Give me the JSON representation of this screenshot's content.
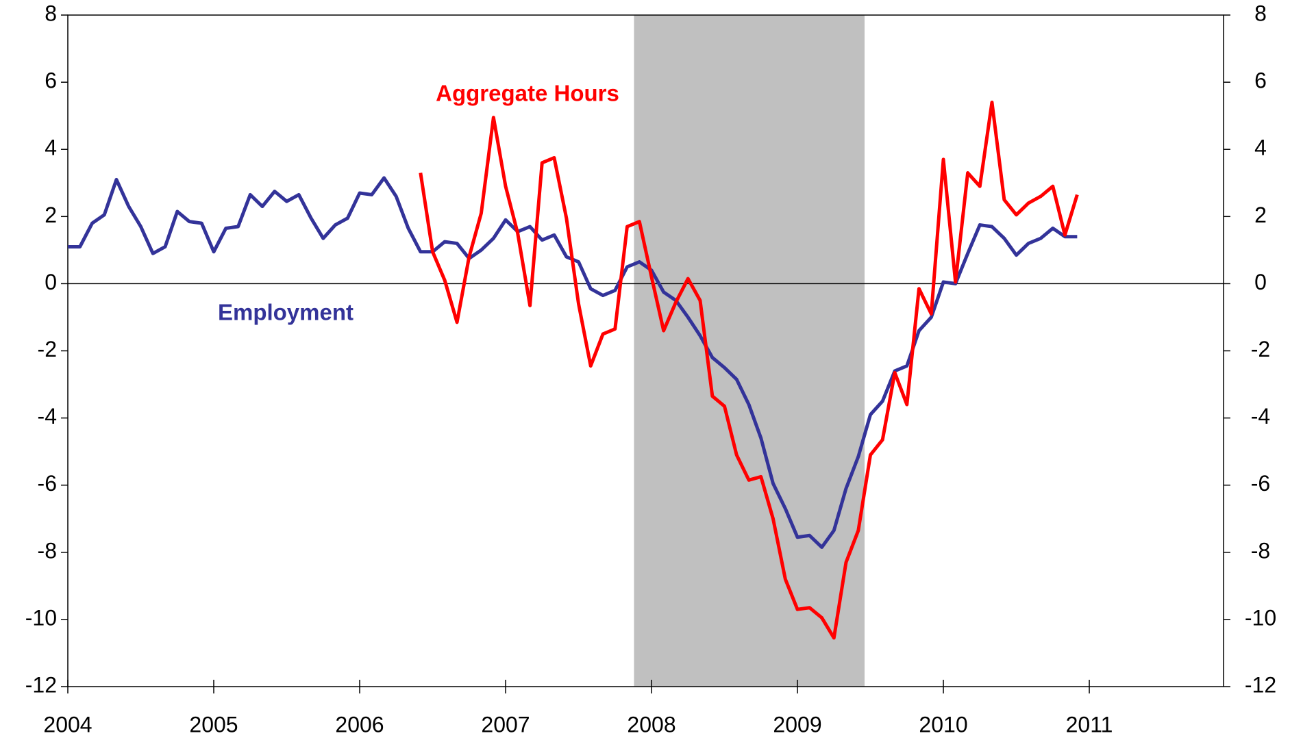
{
  "chart_data": {
    "type": "line",
    "x": [
      2004,
      2004.083,
      2004.167,
      2004.25,
      2004.333,
      2004.417,
      2004.5,
      2004.583,
      2004.667,
      2004.75,
      2004.833,
      2004.917,
      2005,
      2005.083,
      2005.167,
      2005.25,
      2005.333,
      2005.417,
      2005.5,
      2005.583,
      2005.667,
      2005.75,
      2005.833,
      2005.917,
      2006,
      2006.083,
      2006.167,
      2006.25,
      2006.333,
      2006.417,
      2006.5,
      2006.583,
      2006.667,
      2006.75,
      2006.833,
      2006.917,
      2007,
      2007.083,
      2007.167,
      2007.25,
      2007.333,
      2007.417,
      2007.5,
      2007.583,
      2007.667,
      2007.75,
      2007.833,
      2007.917,
      2008,
      2008.083,
      2008.167,
      2008.25,
      2008.333,
      2008.417,
      2008.5,
      2008.583,
      2008.667,
      2008.75,
      2008.833,
      2008.917,
      2009,
      2009.083,
      2009.167,
      2009.25,
      2009.333,
      2009.417,
      2009.5,
      2009.583,
      2009.667,
      2009.75,
      2009.833,
      2009.917,
      2010,
      2010.083,
      2010.167,
      2010.25,
      2010.333,
      2010.417,
      2010.5,
      2010.583,
      2010.667,
      2010.75,
      2010.833,
      2010.917
    ],
    "series": [
      {
        "name": "Employment",
        "color": "#333399",
        "values": [
          1.1,
          1.1,
          1.8,
          2.05,
          3.1,
          2.3,
          1.7,
          0.9,
          1.1,
          2.15,
          1.85,
          1.8,
          0.95,
          1.65,
          1.7,
          2.65,
          2.3,
          2.75,
          2.45,
          2.65,
          1.95,
          1.35,
          1.75,
          1.95,
          2.7,
          2.65,
          3.15,
          2.6,
          1.65,
          0.95,
          0.95,
          1.25,
          1.2,
          0.75,
          1.0,
          1.35,
          1.9,
          1.55,
          1.7,
          1.3,
          1.45,
          0.8,
          0.65,
          -0.15,
          -0.35,
          -0.2,
          0.5,
          0.65,
          0.4,
          -0.25,
          -0.5,
          -1.0,
          -1.55,
          -2.2,
          -2.5,
          -2.85,
          -3.6,
          -4.6,
          -5.95,
          -6.7,
          -7.55,
          -7.5,
          -7.85,
          -7.35,
          -6.1,
          -5.15,
          -3.9,
          -3.5,
          -2.6,
          -2.45,
          -1.4,
          -1.0,
          0.05,
          0.0,
          0.9,
          1.75,
          1.7,
          1.35,
          0.85,
          1.2,
          1.35,
          1.65,
          1.4,
          1.4
        ]
      },
      {
        "name": "Aggregate Hours",
        "color": "#ff0000",
        "values": [
          null,
          null,
          null,
          null,
          null,
          null,
          null,
          null,
          null,
          null,
          null,
          null,
          null,
          null,
          null,
          null,
          null,
          null,
          null,
          null,
          null,
          null,
          null,
          null,
          null,
          null,
          null,
          null,
          null,
          3.3,
          0.95,
          0.1,
          -1.15,
          0.8,
          2.1,
          4.95,
          2.9,
          1.5,
          -0.65,
          3.6,
          3.75,
          1.95,
          -0.6,
          -2.45,
          -1.5,
          -1.35,
          1.7,
          1.85,
          0.2,
          -1.4,
          -0.55,
          0.15,
          -0.5,
          -3.35,
          -3.65,
          -5.1,
          -5.85,
          -5.75,
          -7.0,
          -8.8,
          -9.7,
          -9.65,
          -9.95,
          -10.55,
          -8.3,
          -7.35,
          -5.1,
          -4.65,
          -2.65,
          -3.6,
          -0.15,
          -0.9,
          3.7,
          0.05,
          3.3,
          2.9,
          5.4,
          2.5,
          2.05,
          2.4,
          2.6,
          2.9,
          1.45,
          2.65
        ]
      }
    ],
    "annotations": [
      {
        "text": "Aggregate Hours",
        "color": "#ff0000"
      },
      {
        "text": "Employment",
        "color": "#333399"
      }
    ],
    "shaded_region": [
      2007.88,
      2009.46
    ],
    "shade_color": "#c0c0c0",
    "xlim": [
      2004,
      2011.92
    ],
    "xticks": [
      2004,
      2005,
      2006,
      2007,
      2008,
      2009,
      2010,
      2011
    ],
    "ylim": [
      -12,
      8
    ],
    "yticks": [
      -12,
      -10,
      -8,
      -6,
      -4,
      -2,
      0,
      2,
      4,
      6,
      8
    ],
    "y2lim": [
      -12,
      8
    ],
    "y2ticks": [
      -12,
      -10,
      -8,
      -6,
      -4,
      -2,
      0,
      2,
      4,
      6,
      8
    ]
  }
}
